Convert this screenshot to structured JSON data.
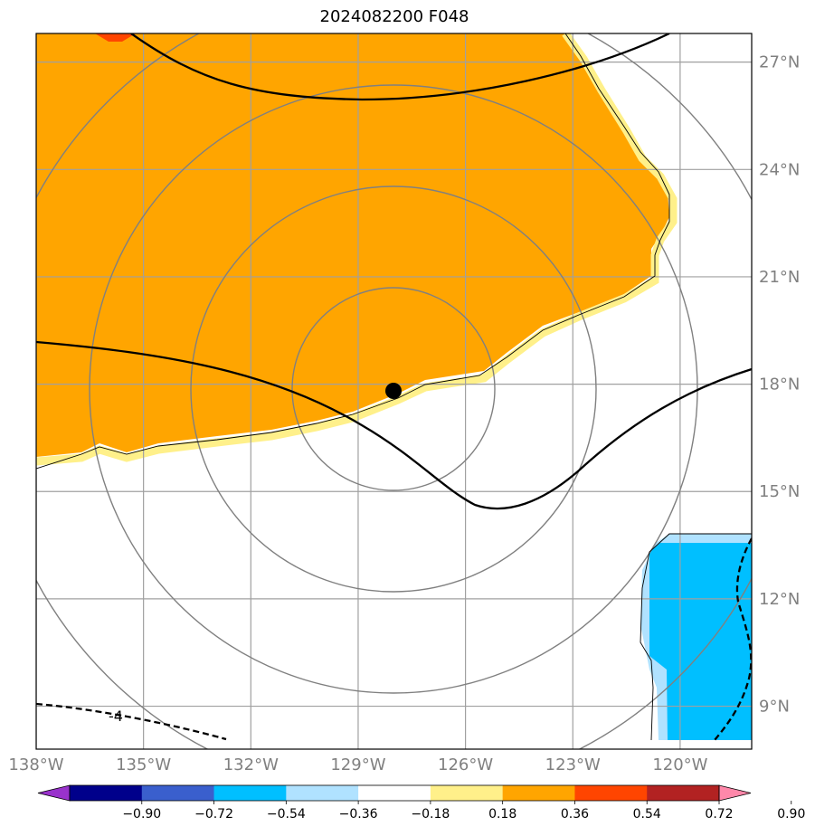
{
  "title": "2024082200 F048",
  "map": {
    "lon_range": [
      -138,
      -118
    ],
    "lat_range": [
      7.8,
      27.8
    ],
    "lon_ticks": [
      {
        "value": -138,
        "label": "138°W"
      },
      {
        "value": -135,
        "label": "135°W"
      },
      {
        "value": -132,
        "label": "132°W"
      },
      {
        "value": -129,
        "label": "129°W"
      },
      {
        "value": -126,
        "label": "126°W"
      },
      {
        "value": -123,
        "label": "123°W"
      },
      {
        "value": -120,
        "label": "120°W"
      }
    ],
    "lat_ticks": [
      {
        "value": 27,
        "label": "27°N"
      },
      {
        "value": 24,
        "label": "24°N"
      },
      {
        "value": 21,
        "label": "21°N"
      },
      {
        "value": 18,
        "label": "18°N"
      },
      {
        "value": 15,
        "label": "15°N"
      },
      {
        "value": 12,
        "label": "12°N"
      },
      {
        "value": 9,
        "label": "9°N"
      }
    ],
    "storm_center": {
      "lon": -128.2,
      "lat": 17.7
    },
    "contour_label": "-4",
    "grid_color": "#a0a0a0",
    "range_ring_color": "#808080"
  },
  "colorbar": {
    "colors": [
      "#9932cc",
      "#00008b",
      "#3a5fcd",
      "#00bfff",
      "#b0e2ff",
      "#ffffff",
      "#fff08a",
      "#ffa500",
      "#ff4500",
      "#b22222",
      "#ff88aa"
    ],
    "labels": [
      "−0.90",
      "−0.72",
      "−0.54",
      "−0.36",
      "−0.18",
      "0.18",
      "0.36",
      "0.54",
      "0.72",
      "0.90"
    ]
  }
}
